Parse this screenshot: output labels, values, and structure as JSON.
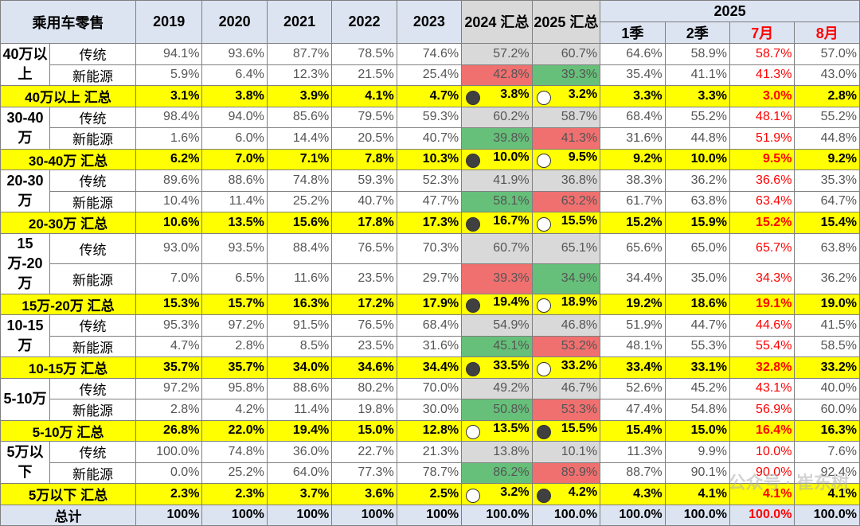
{
  "header": {
    "corner": "乘用车零售",
    "years": [
      "2019",
      "2020",
      "2021",
      "2022",
      "2023"
    ],
    "sum2024": "2024 汇总",
    "sum2025": "2025 汇总",
    "group2025": "2025",
    "sub": [
      "1季",
      "2季",
      "7月",
      "8月"
    ]
  },
  "blocks": [
    {
      "group": "40万以上",
      "rows": [
        {
          "kind": "传统",
          "vals": [
            "94.1%",
            "93.6%",
            "87.7%",
            "78.5%",
            "74.6%"
          ],
          "v24": "57.2%",
          "v25": "60.7%",
          "c24": "gray",
          "c25": "gray",
          "sub": [
            "64.6%",
            "58.9%",
            "58.7%",
            "57.0%"
          ]
        },
        {
          "kind": "新能源",
          "vals": [
            "5.9%",
            "6.4%",
            "12.3%",
            "21.5%",
            "25.4%"
          ],
          "v24": "42.8%",
          "v25": "39.3%",
          "c24": "red",
          "c25": "green",
          "sub": [
            "35.4%",
            "41.1%",
            "41.3%",
            "43.0%"
          ]
        }
      ],
      "sum": {
        "label": "40万以上 汇总",
        "vals": [
          "3.1%",
          "3.8%",
          "3.9%",
          "4.1%",
          "4.7%"
        ],
        "v24": "3.8%",
        "v25": "3.2%",
        "m24": "filled",
        "m25": "open",
        "sub": [
          "3.3%",
          "3.3%",
          "3.0%",
          "2.8%"
        ]
      }
    },
    {
      "group": "30-40万",
      "rows": [
        {
          "kind": "传统",
          "vals": [
            "98.4%",
            "94.0%",
            "85.6%",
            "79.5%",
            "59.3%"
          ],
          "v24": "60.2%",
          "v25": "58.7%",
          "c24": "gray",
          "c25": "gray",
          "sub": [
            "68.4%",
            "55.2%",
            "48.1%",
            "55.2%"
          ]
        },
        {
          "kind": "新能源",
          "vals": [
            "1.6%",
            "6.0%",
            "14.4%",
            "20.5%",
            "40.7%"
          ],
          "v24": "39.8%",
          "v25": "41.3%",
          "c24": "green",
          "c25": "red",
          "sub": [
            "31.6%",
            "44.8%",
            "51.9%",
            "44.8%"
          ]
        }
      ],
      "sum": {
        "label": "30-40万 汇总",
        "vals": [
          "6.2%",
          "7.0%",
          "7.1%",
          "7.8%",
          "10.3%"
        ],
        "v24": "10.0%",
        "v25": "9.5%",
        "m24": "filled",
        "m25": "open",
        "sub": [
          "9.2%",
          "10.0%",
          "9.5%",
          "9.2%"
        ]
      }
    },
    {
      "group": "20-30万",
      "rows": [
        {
          "kind": "传统",
          "vals": [
            "89.6%",
            "88.6%",
            "74.8%",
            "59.3%",
            "52.3%"
          ],
          "v24": "41.9%",
          "v25": "36.8%",
          "c24": "gray",
          "c25": "gray",
          "sub": [
            "38.3%",
            "36.2%",
            "36.6%",
            "35.3%"
          ]
        },
        {
          "kind": "新能源",
          "vals": [
            "10.4%",
            "11.4%",
            "25.2%",
            "40.7%",
            "47.7%"
          ],
          "v24": "58.1%",
          "v25": "63.2%",
          "c24": "green",
          "c25": "red",
          "sub": [
            "61.7%",
            "63.8%",
            "63.4%",
            "64.7%"
          ]
        }
      ],
      "sum": {
        "label": "20-30万 汇总",
        "vals": [
          "10.6%",
          "13.5%",
          "15.6%",
          "17.8%",
          "17.3%"
        ],
        "v24": "16.7%",
        "v25": "15.5%",
        "m24": "filled",
        "m25": "open",
        "sub": [
          "15.2%",
          "15.9%",
          "15.2%",
          "15.4%"
        ]
      }
    },
    {
      "group": "15万-20万",
      "rows": [
        {
          "kind": "传统",
          "vals": [
            "93.0%",
            "93.5%",
            "88.4%",
            "76.5%",
            "70.3%"
          ],
          "v24": "60.7%",
          "v25": "65.1%",
          "c24": "gray",
          "c25": "gray",
          "sub": [
            "65.6%",
            "65.0%",
            "65.7%",
            "63.8%"
          ]
        },
        {
          "kind": "新能源",
          "vals": [
            "7.0%",
            "6.5%",
            "11.6%",
            "23.5%",
            "29.7%"
          ],
          "v24": "39.3%",
          "v25": "34.9%",
          "c24": "red",
          "c25": "green",
          "sub": [
            "34.4%",
            "35.0%",
            "34.3%",
            "36.2%"
          ]
        }
      ],
      "sum": {
        "label": "15万-20万 汇总",
        "vals": [
          "15.3%",
          "15.7%",
          "16.3%",
          "17.2%",
          "17.9%"
        ],
        "v24": "19.4%",
        "v25": "18.9%",
        "m24": "filled",
        "m25": "open",
        "sub": [
          "19.2%",
          "18.6%",
          "19.1%",
          "19.0%"
        ]
      }
    },
    {
      "group": "10-15万",
      "rows": [
        {
          "kind": "传统",
          "vals": [
            "95.3%",
            "97.2%",
            "91.5%",
            "76.5%",
            "68.4%"
          ],
          "v24": "54.9%",
          "v25": "46.8%",
          "c24": "gray",
          "c25": "gray",
          "sub": [
            "51.9%",
            "44.7%",
            "44.6%",
            "41.5%"
          ]
        },
        {
          "kind": "新能源",
          "vals": [
            "4.7%",
            "2.8%",
            "8.5%",
            "23.5%",
            "31.6%"
          ],
          "v24": "45.1%",
          "v25": "53.2%",
          "c24": "green",
          "c25": "red",
          "sub": [
            "48.1%",
            "55.3%",
            "55.4%",
            "58.5%"
          ]
        }
      ],
      "sum": {
        "label": "10-15万 汇总",
        "vals": [
          "35.7%",
          "35.7%",
          "34.0%",
          "34.6%",
          "34.4%"
        ],
        "v24": "33.5%",
        "v25": "33.2%",
        "m24": "filled",
        "m25": "open",
        "sub": [
          "33.4%",
          "33.1%",
          "32.8%",
          "33.2%"
        ]
      }
    },
    {
      "group": "5-10万",
      "rows": [
        {
          "kind": "传统",
          "vals": [
            "97.2%",
            "95.8%",
            "88.6%",
            "80.2%",
            "70.0%"
          ],
          "v24": "49.2%",
          "v25": "46.7%",
          "c24": "gray",
          "c25": "gray",
          "sub": [
            "52.6%",
            "45.2%",
            "43.1%",
            "40.0%"
          ]
        },
        {
          "kind": "新能源",
          "vals": [
            "2.8%",
            "4.2%",
            "11.4%",
            "19.8%",
            "30.0%"
          ],
          "v24": "50.8%",
          "v25": "53.3%",
          "c24": "green",
          "c25": "red",
          "sub": [
            "47.4%",
            "54.8%",
            "56.9%",
            "60.0%"
          ]
        }
      ],
      "sum": {
        "label": "5-10万 汇总",
        "vals": [
          "26.8%",
          "22.0%",
          "19.4%",
          "15.0%",
          "12.8%"
        ],
        "v24": "13.5%",
        "v25": "15.5%",
        "m24": "open",
        "m25": "filled",
        "sub": [
          "15.4%",
          "15.0%",
          "16.4%",
          "16.3%"
        ]
      }
    },
    {
      "group": "5万以下",
      "rows": [
        {
          "kind": "传统",
          "vals": [
            "100.0%",
            "74.8%",
            "36.0%",
            "22.7%",
            "21.3%"
          ],
          "v24": "13.8%",
          "v25": "10.1%",
          "c24": "gray",
          "c25": "gray",
          "sub": [
            "11.3%",
            "9.9%",
            "10.0%",
            "7.6%"
          ]
        },
        {
          "kind": "新能源",
          "vals": [
            "0.0%",
            "25.2%",
            "64.0%",
            "77.3%",
            "78.7%"
          ],
          "v24": "86.2%",
          "v25": "89.9%",
          "c24": "green",
          "c25": "red",
          "sub": [
            "88.7%",
            "90.1%",
            "90.0%",
            "92.4%"
          ]
        }
      ],
      "sum": {
        "label": "5万以下 汇总",
        "vals": [
          "2.3%",
          "2.3%",
          "3.7%",
          "3.6%",
          "2.5%"
        ],
        "v24": "3.2%",
        "v25": "4.2%",
        "m24": "open",
        "m25": "filled",
        "sub": [
          "4.3%",
          "4.1%",
          "4.1%",
          "4.1%"
        ]
      }
    }
  ],
  "total": {
    "label": "总计",
    "vals": [
      "100%",
      "100%",
      "100%",
      "100%",
      "100%"
    ],
    "v24": "100.0%",
    "v25": "100.0%",
    "sub": [
      "100.0%",
      "100.0%",
      "100.0%",
      "100.0%"
    ]
  },
  "watermark": "公众号 · 崔东树",
  "colors": {
    "header": "#dce4f2",
    "sum_row": "#ffff00",
    "gray": "#d9d9d9",
    "green": "#66c07a",
    "red": "#f07070",
    "month_text": "#ff0000"
  }
}
